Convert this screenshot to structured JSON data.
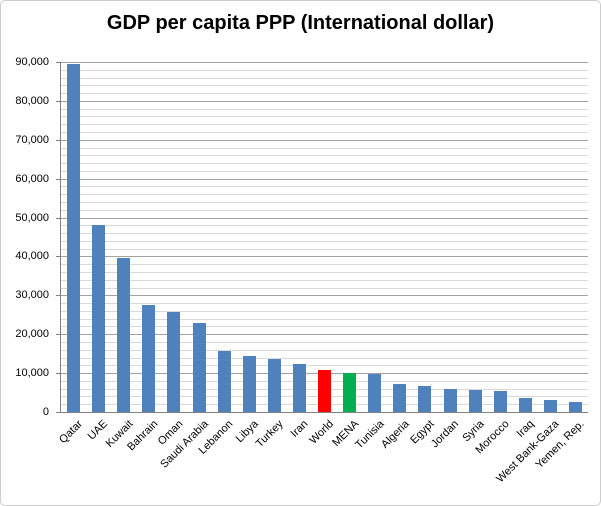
{
  "chart_data": {
    "type": "bar",
    "title": "GDP per capita PPP (International dollar)",
    "categories": [
      "Qatar",
      "UAE",
      "Kuwait",
      "Bahrain",
      "Oman",
      "Saudi Arabia",
      "Lebanon",
      "Libya",
      "Turkey",
      "Iran",
      "World",
      "MENA",
      "Tunisia",
      "Algeria",
      "Egypt",
      "Jordan",
      "Syria",
      "Morocco",
      "Iraq",
      "West Bank-Gaza",
      "Yemen, Rep."
    ],
    "values": [
      89500,
      48000,
      39600,
      27500,
      25800,
      23000,
      15800,
      14300,
      13700,
      12400,
      10900,
      10000,
      9800,
      7200,
      6800,
      5800,
      5600,
      5300,
      3700,
      3000,
      2700
    ],
    "bar_colors": [
      "#4F81BD",
      "#4F81BD",
      "#4F81BD",
      "#4F81BD",
      "#4F81BD",
      "#4F81BD",
      "#4F81BD",
      "#4F81BD",
      "#4F81BD",
      "#4F81BD",
      "#FF0000",
      "#00B050",
      "#4F81BD",
      "#4F81BD",
      "#4F81BD",
      "#4F81BD",
      "#4F81BD",
      "#4F81BD",
      "#4F81BD",
      "#4F81BD",
      "#4F81BD"
    ],
    "xlabel": "",
    "ylabel": "",
    "ylim": [
      0,
      90000
    ],
    "y_major_step": 10000,
    "y_minor_step": 2000,
    "y_tick_labels": [
      "0",
      "10,000",
      "20,000",
      "30,000",
      "40,000",
      "50,000",
      "60,000",
      "70,000",
      "80,000",
      "90,000"
    ],
    "grid": "horizontal, major and minor, full plot width",
    "legend": "none"
  },
  "colors": {
    "bar_default": "#4F81BD",
    "bar_world_highlight": "#FF0000",
    "bar_mena_highlight": "#00B050",
    "gridline_minor": "#D9D9D9",
    "gridline_major": "#A3A3A3",
    "axis_line": "#808080",
    "frame_border": "#CDCDCD",
    "background": "#FFFFFF",
    "text": "#000000"
  }
}
